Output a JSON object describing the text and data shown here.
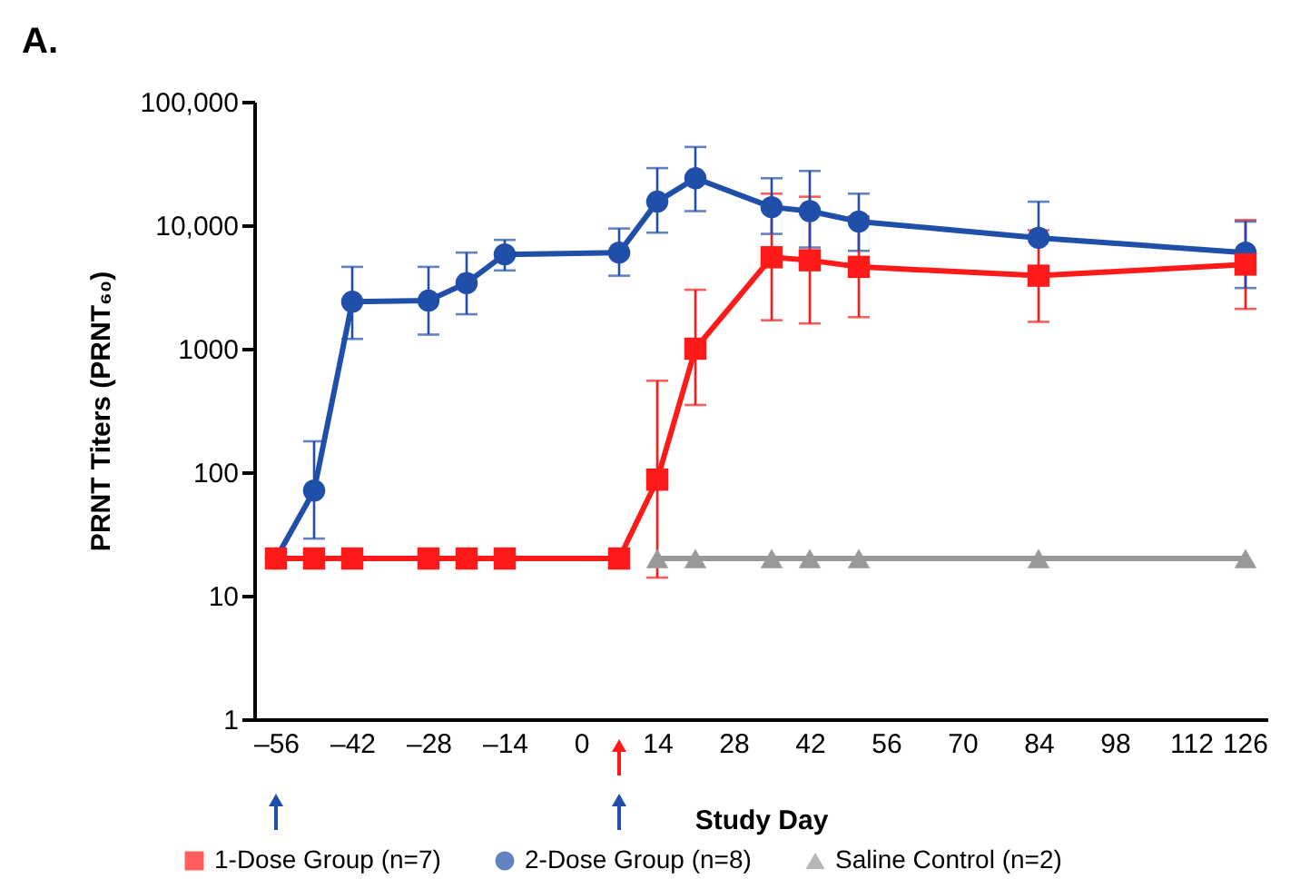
{
  "chart_data": {
    "type": "line",
    "title": "A.",
    "xlabel": "Study Day",
    "ylabel": "PRNT Titers (PRNT₆₀)",
    "log": "y",
    "grid": false,
    "legend": "bottom",
    "line_style": "solid",
    "xlim": [
      -60,
      126
    ],
    "xticks": [
      {
        "value": -56,
        "label": "–56"
      },
      {
        "value": -42,
        "label": "–42"
      },
      {
        "value": -28,
        "label": "–28"
      },
      {
        "value": -14,
        "label": "–14"
      },
      0,
      14,
      28,
      42,
      56,
      70,
      84,
      98,
      112,
      126
    ],
    "ylim": [
      1,
      100000
    ],
    "yticks": [
      1,
      10,
      100,
      1000,
      {
        "value": 10000,
        "label": "10,000"
      },
      {
        "value": 100000,
        "label": "100,000"
      }
    ],
    "series": [
      {
        "name": "1-Dose Group (n=7)",
        "color": "#ff1a1a",
        "marker": "square",
        "x": [
          -56,
          -49,
          -42,
          -28,
          -21,
          -14,
          7,
          14,
          21,
          35,
          42,
          51,
          84,
          122
        ],
        "values": [
          20,
          20,
          20,
          20,
          20,
          20,
          20,
          87,
          1000,
          5500,
          5200,
          4600,
          3900,
          4800
        ],
        "errors": [
          null,
          null,
          null,
          null,
          null,
          null,
          null,
          [
            14,
            550
          ],
          [
            350,
            3000
          ],
          [
            1700,
            18000
          ],
          [
            1600,
            17000
          ],
          [
            1800,
            11800
          ],
          [
            1650,
            9100
          ],
          [
            2100,
            11000
          ]
        ]
      },
      {
        "name": "2-Dose Group (n=8)",
        "color": "#1f4fa8",
        "marker": "circle",
        "x": [
          -56,
          -49,
          -42,
          -28,
          -21,
          -14,
          7,
          14,
          21,
          35,
          42,
          51,
          84,
          122
        ],
        "values": [
          20,
          71,
          2400,
          2450,
          3400,
          5800,
          6000,
          15500,
          24000,
          14000,
          13000,
          10700,
          7900,
          6000
        ],
        "errors": [
          null,
          [
            29,
            178
          ],
          [
            1200,
            4600
          ],
          [
            1300,
            4600
          ],
          [
            1900,
            6000
          ],
          [
            4300,
            7600
          ],
          [
            3900,
            9400
          ],
          [
            8700,
            29000
          ],
          [
            13000,
            43000
          ],
          [
            8500,
            24000
          ],
          [
            6600,
            27500
          ],
          [
            6200,
            18000
          ],
          [
            7900,
            15500
          ],
          [
            3100,
            10700
          ]
        ]
      },
      {
        "name": "Saline Control (n=2)",
        "color": "#999999",
        "marker": "triangle",
        "x": [
          14,
          21,
          35,
          42,
          51,
          84,
          122
        ],
        "values": [
          20,
          20,
          20,
          20,
          20,
          20,
          20
        ]
      }
    ]
  }
}
